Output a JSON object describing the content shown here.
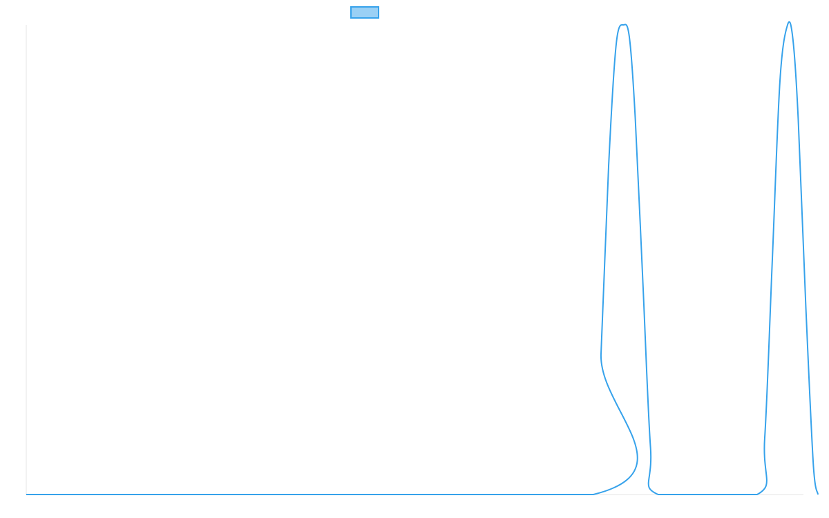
{
  "chart_data": {
    "type": "line",
    "title": "",
    "xlabel": "",
    "ylabel": "",
    "legend": {
      "position": "top-center",
      "entries": [
        {
          "label": "",
          "color": "#36a2eb"
        }
      ]
    },
    "grid": false,
    "xlim": [
      0,
      1
    ],
    "ylim": [
      0,
      1
    ],
    "series": [
      {
        "color": "#36a2eb",
        "fill_color": "#9ad0f5",
        "x": [
          0,
          0.745,
          0.755,
          0.765,
          0.775,
          0.785,
          0.7925,
          0.8,
          0.81,
          0.82,
          0.83,
          0.96,
          0.97,
          0.98,
          0.99,
          1.0,
          1.007,
          1.014,
          1.024,
          1.034,
          1.04
        ],
        "y": [
          0,
          0,
          0.3,
          0.7,
          0.96,
          1.0,
          0.97,
          0.8,
          0.45,
          0.1,
          0,
          0,
          0.12,
          0.5,
          0.88,
          1.0,
          0.97,
          0.8,
          0.4,
          0.06,
          0
        ]
      }
    ]
  }
}
